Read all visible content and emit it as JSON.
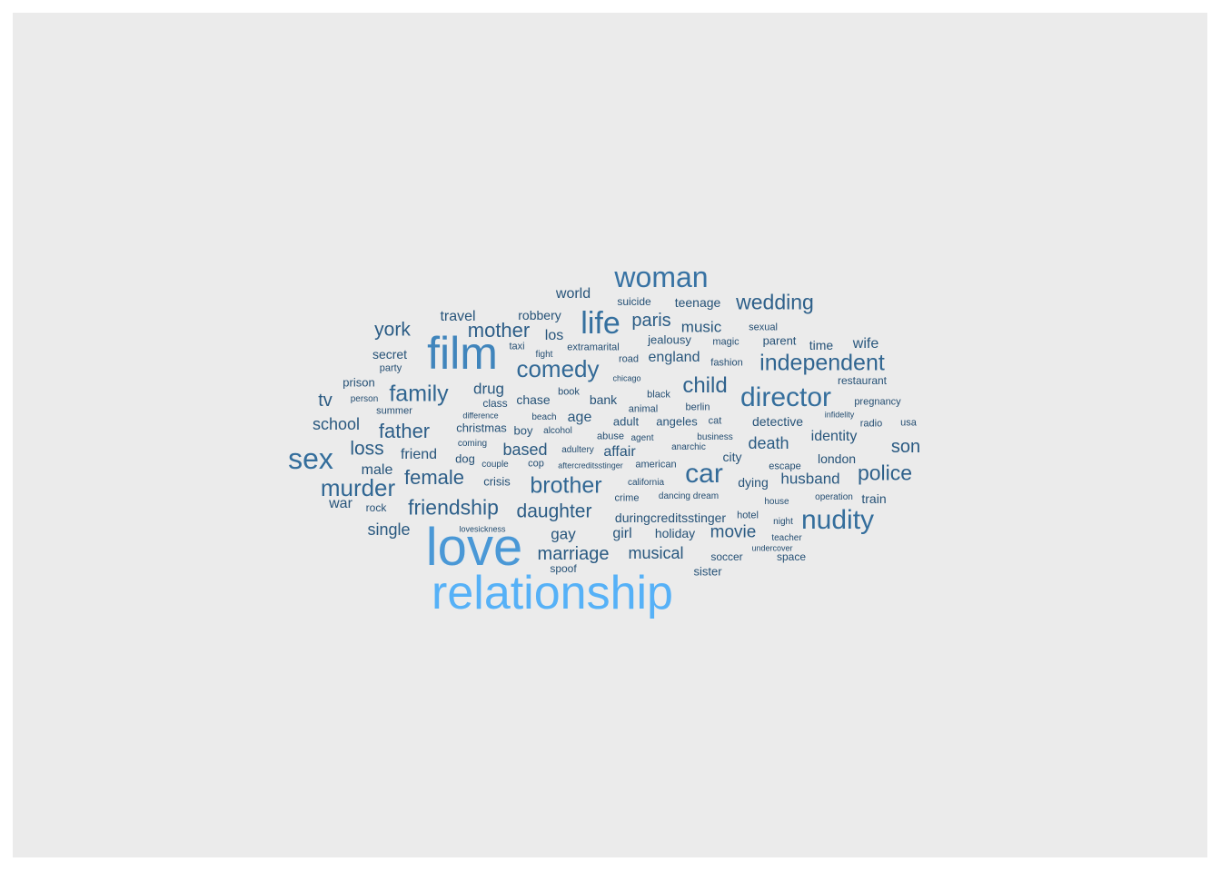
{
  "colors": {
    "background": "#ebebeb",
    "scale_low": "#132b43",
    "scale_high": "#56b1f7"
  },
  "words": [
    {
      "text": "relationship",
      "freq": 100
    },
    {
      "text": "love",
      "freq": 80
    },
    {
      "text": "film",
      "freq": 64
    },
    {
      "text": "woman",
      "freq": 48
    },
    {
      "text": "life",
      "freq": 46
    },
    {
      "text": "sex",
      "freq": 44
    },
    {
      "text": "director",
      "freq": 44
    },
    {
      "text": "nudity",
      "freq": 44
    },
    {
      "text": "car",
      "freq": 42
    },
    {
      "text": "comedy",
      "freq": 40
    },
    {
      "text": "murder",
      "freq": 38
    },
    {
      "text": "brother",
      "freq": 38
    },
    {
      "text": "family",
      "freq": 36
    },
    {
      "text": "independent",
      "freq": 36
    },
    {
      "text": "wedding",
      "freq": 32
    },
    {
      "text": "child",
      "freq": 34
    },
    {
      "text": "police",
      "freq": 32
    },
    {
      "text": "friendship",
      "freq": 32
    },
    {
      "text": "mother",
      "freq": 30
    },
    {
      "text": "father",
      "freq": 30
    },
    {
      "text": "female",
      "freq": 30
    },
    {
      "text": "york",
      "freq": 28
    },
    {
      "text": "daughter",
      "freq": 28
    },
    {
      "text": "paris",
      "freq": 28
    },
    {
      "text": "loss",
      "freq": 28
    },
    {
      "text": "marriage",
      "freq": 26
    },
    {
      "text": "son",
      "freq": 26
    },
    {
      "text": "death",
      "freq": 26
    },
    {
      "text": "movie",
      "freq": 26
    },
    {
      "text": "tv",
      "freq": 26
    },
    {
      "text": "husband",
      "freq": 24
    },
    {
      "text": "musical",
      "freq": 24
    },
    {
      "text": "school",
      "freq": 24
    },
    {
      "text": "drug",
      "freq": 24
    },
    {
      "text": "based",
      "freq": 24
    },
    {
      "text": "single",
      "freq": 24
    },
    {
      "text": "music",
      "freq": 22
    },
    {
      "text": "england",
      "freq": 22
    },
    {
      "text": "identity",
      "freq": 22
    },
    {
      "text": "gay",
      "freq": 22
    },
    {
      "text": "age",
      "freq": 22
    },
    {
      "text": "affair",
      "freq": 22
    },
    {
      "text": "wife",
      "freq": 22
    },
    {
      "text": "world",
      "freq": 20
    },
    {
      "text": "travel",
      "freq": 20
    },
    {
      "text": "los",
      "freq": 20
    },
    {
      "text": "girl",
      "freq": 20
    },
    {
      "text": "war",
      "freq": 20
    },
    {
      "text": "male",
      "freq": 20
    },
    {
      "text": "friend",
      "freq": 20
    },
    {
      "text": "bank",
      "freq": 18
    },
    {
      "text": "chase",
      "freq": 18
    },
    {
      "text": "detective",
      "freq": 18
    },
    {
      "text": "london",
      "freq": 18
    },
    {
      "text": "secret",
      "freq": 18
    },
    {
      "text": "teenage",
      "freq": 18
    },
    {
      "text": "robbery",
      "freq": 18
    },
    {
      "text": "city",
      "freq": 18
    },
    {
      "text": "dying",
      "freq": 18
    },
    {
      "text": "holiday",
      "freq": 18
    },
    {
      "text": "duringcreditsstinger",
      "freq": 18
    },
    {
      "text": "jealousy",
      "freq": 18
    },
    {
      "text": "angeles",
      "freq": 18
    },
    {
      "text": "adult",
      "freq": 18
    },
    {
      "text": "train",
      "freq": 18
    },
    {
      "text": "time",
      "freq": 18
    },
    {
      "text": "christmas",
      "freq": 18
    },
    {
      "text": "boy",
      "freq": 18
    },
    {
      "text": "sister",
      "freq": 18
    },
    {
      "text": "suicide",
      "freq": 16
    },
    {
      "text": "restaurant",
      "freq": 16
    },
    {
      "text": "prison",
      "freq": 16
    },
    {
      "text": "parent",
      "freq": 16
    },
    {
      "text": "dog",
      "freq": 16
    },
    {
      "text": "crisis",
      "freq": 16
    },
    {
      "text": "soccer",
      "freq": 16
    },
    {
      "text": "space",
      "freq": 16
    },
    {
      "text": "class",
      "freq": 16
    },
    {
      "text": "spoof",
      "freq": 16
    },
    {
      "text": "rock",
      "freq": 16
    },
    {
      "text": "summer",
      "freq": 14
    },
    {
      "text": "extramarital",
      "freq": 14
    },
    {
      "text": "crime",
      "freq": 14
    },
    {
      "text": "abuse",
      "freq": 14
    },
    {
      "text": "magic",
      "freq": 14
    },
    {
      "text": "american",
      "freq": 14
    },
    {
      "text": "taxi",
      "freq": 14
    },
    {
      "text": "cop",
      "freq": 14
    },
    {
      "text": "sexual",
      "freq": 14
    },
    {
      "text": "escape",
      "freq": 14
    },
    {
      "text": "pregnancy",
      "freq": 14
    },
    {
      "text": "hotel",
      "freq": 14
    },
    {
      "text": "fashion",
      "freq": 14
    },
    {
      "text": "animal",
      "freq": 14
    },
    {
      "text": "party",
      "freq": 14
    },
    {
      "text": "radio",
      "freq": 14
    },
    {
      "text": "road",
      "freq": 14
    },
    {
      "text": "usa",
      "freq": 14
    },
    {
      "text": "cat",
      "freq": 14
    },
    {
      "text": "black",
      "freq": 14
    },
    {
      "text": "berlin",
      "freq": 14
    },
    {
      "text": "book",
      "freq": 14
    },
    {
      "text": "person",
      "freq": 14
    },
    {
      "text": "teacher",
      "freq": 14
    },
    {
      "text": "house",
      "freq": 14
    },
    {
      "text": "dancing dream",
      "freq": 14
    },
    {
      "text": "beach",
      "freq": 14
    },
    {
      "text": "alcohol",
      "freq": 14
    },
    {
      "text": "agent",
      "freq": 14
    },
    {
      "text": "anarchic",
      "freq": 14
    },
    {
      "text": "business",
      "freq": 14
    },
    {
      "text": "night",
      "freq": 14
    },
    {
      "text": "couple",
      "freq": 14
    },
    {
      "text": "fight",
      "freq": 14
    },
    {
      "text": "operation",
      "freq": 14
    },
    {
      "text": "coming",
      "freq": 14
    },
    {
      "text": "adultery",
      "freq": 14
    },
    {
      "text": "california",
      "freq": 14
    },
    {
      "text": "difference",
      "freq": 12
    },
    {
      "text": "chicago",
      "freq": 12
    },
    {
      "text": "aftercreditsstinger",
      "freq": 12
    },
    {
      "text": "infidelity",
      "freq": 12
    },
    {
      "text": "undercover",
      "freq": 12
    },
    {
      "text": "lovesickness",
      "freq": 12
    }
  ]
}
